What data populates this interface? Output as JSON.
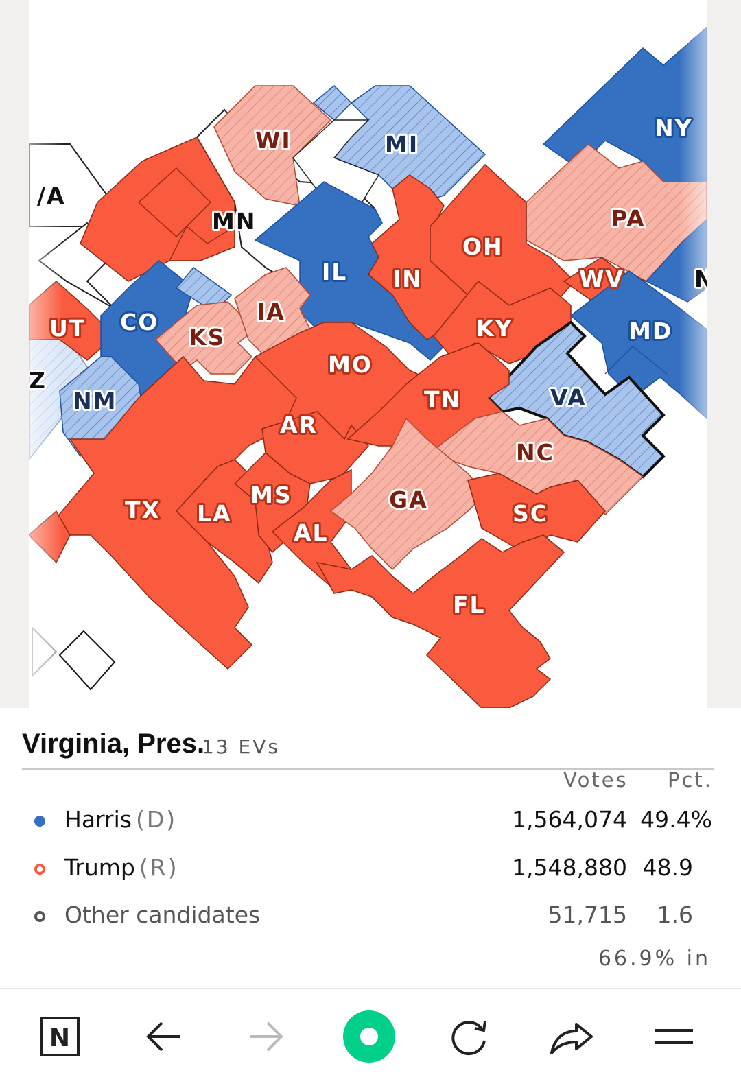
{
  "colors": {
    "dem_solid": "#3670c0",
    "dem_lean": "#a9c4ec",
    "rep_solid": "#fa5a3d",
    "rep_lean": "#f7b3a5",
    "uncalled": "#ffffff",
    "toolbar_accent": "#00d08a"
  },
  "map": {
    "states": [
      {
        "abbr": "WI",
        "status": "rep_lean"
      },
      {
        "abbr": "MI",
        "status": "dem_lean"
      },
      {
        "abbr": "NY",
        "status": "dem_solid"
      },
      {
        "abbr": "MN",
        "status": "uncalled"
      },
      {
        "abbr": "PA",
        "status": "rep_lean"
      },
      {
        "abbr": "IL",
        "status": "dem_solid"
      },
      {
        "abbr": "OH",
        "status": "rep_solid"
      },
      {
        "abbr": "IN",
        "status": "rep_solid"
      },
      {
        "abbr": "WV",
        "status": "rep_solid"
      },
      {
        "abbr": "UT",
        "status": "rep_solid"
      },
      {
        "abbr": "CO",
        "status": "dem_solid"
      },
      {
        "abbr": "IA",
        "status": "rep_lean"
      },
      {
        "abbr": "KS",
        "status": "rep_lean"
      },
      {
        "abbr": "KY",
        "status": "rep_solid"
      },
      {
        "abbr": "MD",
        "status": "dem_solid"
      },
      {
        "abbr": "MO",
        "status": "rep_solid"
      },
      {
        "abbr": "NM",
        "status": "dem_lean"
      },
      {
        "abbr": "VA",
        "status": "dem_lean",
        "selected": true
      },
      {
        "abbr": "TN",
        "status": "rep_solid"
      },
      {
        "abbr": "AR",
        "status": "rep_solid"
      },
      {
        "abbr": "NC",
        "status": "rep_lean"
      },
      {
        "abbr": "TX",
        "status": "rep_solid"
      },
      {
        "abbr": "LA",
        "status": "rep_solid"
      },
      {
        "abbr": "MS",
        "status": "rep_solid"
      },
      {
        "abbr": "GA",
        "status": "rep_lean"
      },
      {
        "abbr": "SC",
        "status": "rep_solid"
      },
      {
        "abbr": "AL",
        "status": "rep_solid"
      },
      {
        "abbr": "FL",
        "status": "rep_solid"
      }
    ],
    "partial_labels": [
      "/A",
      "N",
      "Z"
    ]
  },
  "race": {
    "title": "Virginia, Pres.",
    "evs": "13 EVs",
    "col_votes": "Votes",
    "col_pct": "Pct.",
    "candidates": [
      {
        "name": "Harris",
        "party": "(D)",
        "votes": "1,564,074",
        "pct": "49.4%",
        "color": "#3670c0",
        "marker": "filled"
      },
      {
        "name": "Trump",
        "party": "(R)",
        "votes": "1,548,880",
        "pct": "48.9",
        "color": "#fa5a3d",
        "marker": "ring"
      },
      {
        "name": "Other candidates",
        "party": "",
        "votes": "51,715",
        "pct": "1.6",
        "color": "#555555",
        "marker": "ring"
      }
    ],
    "reporting": "66.9% in"
  },
  "toolbar": {
    "buttons": [
      {
        "icon": "newsbreak-logo-icon"
      },
      {
        "icon": "back-arrow-icon"
      },
      {
        "icon": "forward-arrow-icon",
        "disabled": true
      },
      {
        "icon": "home-circle-icon"
      },
      {
        "icon": "reload-icon"
      },
      {
        "icon": "share-icon"
      },
      {
        "icon": "menu-icon"
      }
    ]
  }
}
